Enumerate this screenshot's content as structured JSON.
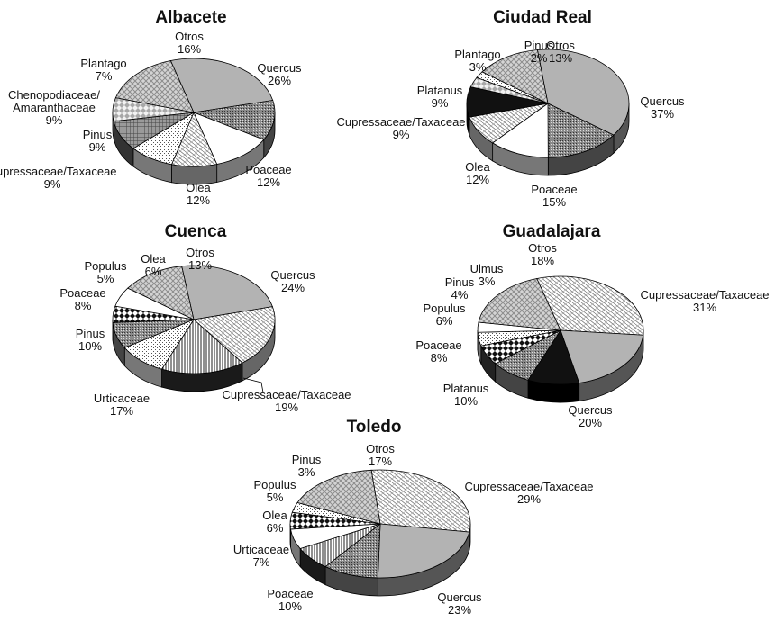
{
  "chart_data": [
    {
      "type": "pie",
      "title": "Albacete",
      "slices": [
        {
          "label": [
            "Quercus"
          ],
          "pct": "26%",
          "value": 26,
          "pattern": "gray"
        },
        {
          "label": [
            "Poaceae"
          ],
          "pct": "12%",
          "value": 12,
          "pattern": "darkdots"
        },
        {
          "label": [
            "Olea"
          ],
          "pct": "12%",
          "value": 12,
          "pattern": "white"
        },
        {
          "label": [
            "Cupressaceae/Taxaceae"
          ],
          "pct": "9%",
          "value": 9,
          "pattern": "brick"
        },
        {
          "label": [
            "Pinus"
          ],
          "pct": "9%",
          "value": 9,
          "pattern": "dots"
        },
        {
          "label": [
            "Chenopodiaceae/",
            "Amaranthaceae"
          ],
          "pct": "9%",
          "value": 9,
          "pattern": "grid"
        },
        {
          "label": [
            "Plantago"
          ],
          "pct": "7%",
          "value": 7,
          "pattern": "diamond"
        },
        {
          "label": [
            "Otros"
          ],
          "pct": "16%",
          "value": 16,
          "pattern": "cross"
        }
      ]
    },
    {
      "type": "pie",
      "title": "Ciudad Real",
      "slices": [
        {
          "label": [
            "Quercus"
          ],
          "pct": "37%",
          "value": 37,
          "pattern": "gray"
        },
        {
          "label": [
            "Poaceae"
          ],
          "pct": "15%",
          "value": 15,
          "pattern": "darkdots"
        },
        {
          "label": [
            "Olea"
          ],
          "pct": "12%",
          "value": 12,
          "pattern": "white"
        },
        {
          "label": [
            "Cupressaceae/Taxaceae"
          ],
          "pct": "9%",
          "value": 9,
          "pattern": "brick"
        },
        {
          "label": [
            "Platanus"
          ],
          "pct": "9%",
          "value": 9,
          "pattern": "black"
        },
        {
          "label": [
            "Plantago"
          ],
          "pct": "3%",
          "value": 3,
          "pattern": "diamond"
        },
        {
          "label": [
            "Pinus"
          ],
          "pct": "2%",
          "value": 2,
          "pattern": "dots"
        },
        {
          "label": [
            "Otros"
          ],
          "pct": "13%",
          "value": 13,
          "pattern": "cross"
        }
      ]
    },
    {
      "type": "pie",
      "title": "Cuenca",
      "slices": [
        {
          "label": [
            "Quercus"
          ],
          "pct": "24%",
          "value": 24,
          "pattern": "gray"
        },
        {
          "label": [
            "Cupressaceae/Taxaceae"
          ],
          "pct": "19%",
          "value": 19,
          "pattern": "brick"
        },
        {
          "label": [
            "Urticaceae"
          ],
          "pct": "17%",
          "value": 17,
          "pattern": "vlines"
        },
        {
          "label": [
            "Pinus"
          ],
          "pct": "10%",
          "value": 10,
          "pattern": "dots"
        },
        {
          "label": [
            "Poaceae"
          ],
          "pct": "8%",
          "value": 8,
          "pattern": "darkdots"
        },
        {
          "label": [
            "Populus"
          ],
          "pct": "5%",
          "value": 5,
          "pattern": "checker"
        },
        {
          "label": [
            "Olea"
          ],
          "pct": "6%",
          "value": 6,
          "pattern": "white"
        },
        {
          "label": [
            "Otros"
          ],
          "pct": "13%",
          "value": 13,
          "pattern": "cross"
        }
      ]
    },
    {
      "type": "pie",
      "title": "Guadalajara",
      "slices": [
        {
          "label": [
            "Cupressaceae/Taxaceae"
          ],
          "pct": "31%",
          "value": 31,
          "pattern": "brick"
        },
        {
          "label": [
            "Quercus"
          ],
          "pct": "20%",
          "value": 20,
          "pattern": "gray"
        },
        {
          "label": [
            "Platanus"
          ],
          "pct": "10%",
          "value": 10,
          "pattern": "black"
        },
        {
          "label": [
            "Poaceae"
          ],
          "pct": "8%",
          "value": 8,
          "pattern": "darkdots"
        },
        {
          "label": [
            "Populus"
          ],
          "pct": "6%",
          "value": 6,
          "pattern": "checker"
        },
        {
          "label": [
            "Pinus"
          ],
          "pct": "4%",
          "value": 4,
          "pattern": "dots"
        },
        {
          "label": [
            "Ulmus"
          ],
          "pct": "3%",
          "value": 3,
          "pattern": "white"
        },
        {
          "label": [
            "Otros"
          ],
          "pct": "18%",
          "value": 18,
          "pattern": "cross"
        }
      ]
    },
    {
      "type": "pie",
      "title": "Toledo",
      "slices": [
        {
          "label": [
            "Cupressaceae/Taxaceae"
          ],
          "pct": "29%",
          "value": 29,
          "pattern": "brick"
        },
        {
          "label": [
            "Quercus"
          ],
          "pct": "23%",
          "value": 23,
          "pattern": "gray"
        },
        {
          "label": [
            "Poaceae"
          ],
          "pct": "10%",
          "value": 10,
          "pattern": "darkdots"
        },
        {
          "label": [
            "Urticaceae"
          ],
          "pct": "7%",
          "value": 7,
          "pattern": "vlines"
        },
        {
          "label": [
            "Olea"
          ],
          "pct": "6%",
          "value": 6,
          "pattern": "white"
        },
        {
          "label": [
            "Populus"
          ],
          "pct": "5%",
          "value": 5,
          "pattern": "checker"
        },
        {
          "label": [
            "Pinus"
          ],
          "pct": "3%",
          "value": 3,
          "pattern": "dots"
        },
        {
          "label": [
            "Otros"
          ],
          "pct": "17%",
          "value": 17,
          "pattern": "cross"
        }
      ]
    }
  ]
}
